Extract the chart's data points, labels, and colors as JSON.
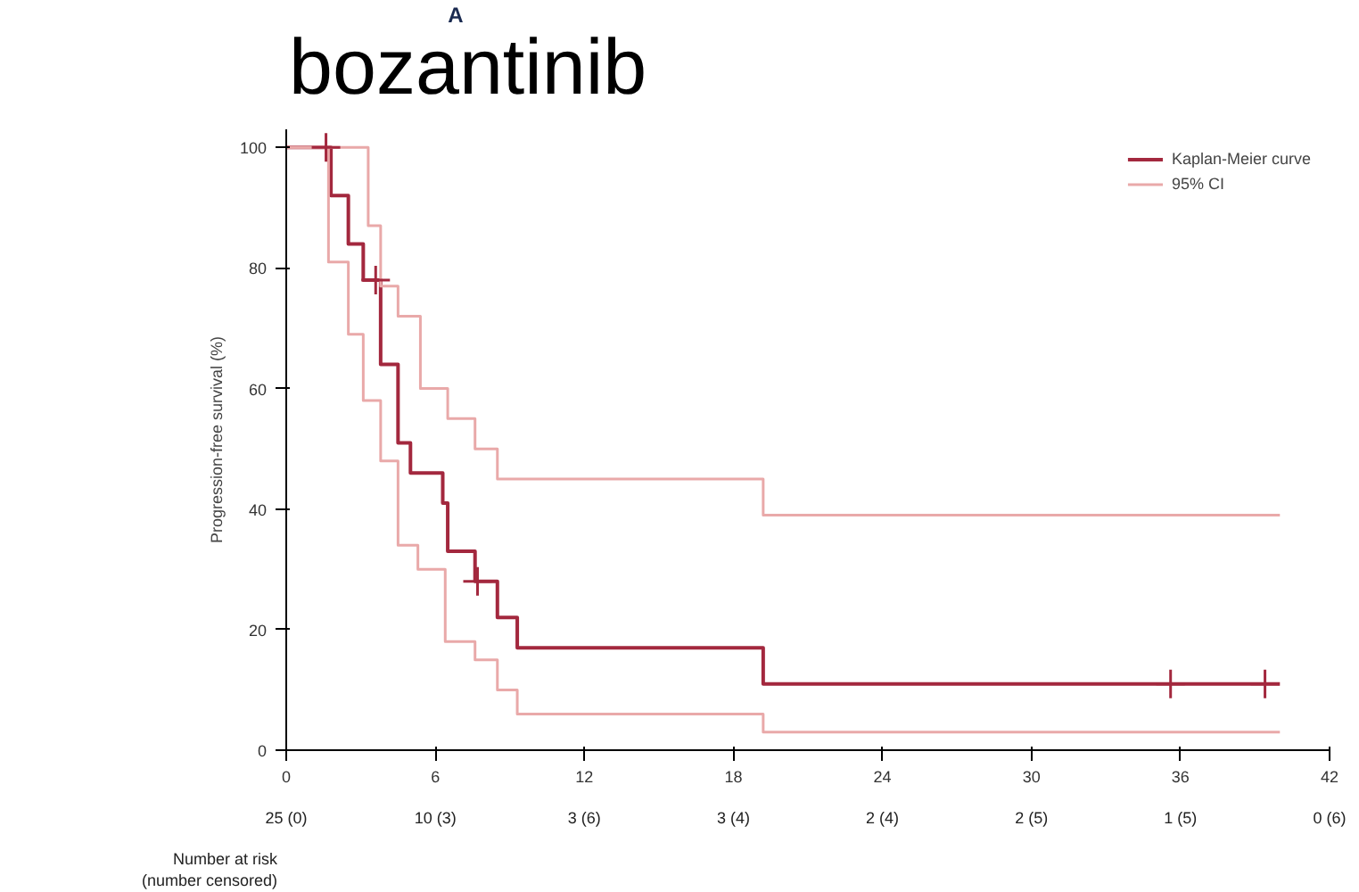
{
  "chart_data": {
    "type": "step",
    "title": "A",
    "subtitle": "bozantinib",
    "ylabel": "Progression-free survival (%)",
    "xlim": [
      0,
      42
    ],
    "ylim": [
      0,
      103
    ],
    "xticks": [
      0,
      6,
      12,
      18,
      24,
      30,
      36,
      42
    ],
    "yticks": [
      0,
      20,
      40,
      60,
      80,
      100
    ],
    "grid": false,
    "legend": "top right",
    "line_style": "solid",
    "series": [
      {
        "name": "Kaplan-Meier curve",
        "color": "#a3283e",
        "x": [
          0,
          1.8,
          2.5,
          3.1,
          3.8,
          4.5,
          5.0,
          6.3,
          6.5,
          7.6,
          8.5,
          9.3,
          19.2,
          40
        ],
        "values": [
          100,
          92,
          84,
          78,
          64,
          51,
          46,
          41,
          33,
          28,
          22,
          17,
          11,
          11
        ]
      },
      {
        "name": "95% CI",
        "color": "#e9a9a9",
        "x": [
          0,
          3.3,
          3.8,
          4.5,
          5.4,
          6.5,
          7.6,
          8.5,
          9.3,
          19.2,
          40
        ],
        "values": [
          100,
          87,
          77,
          72,
          60,
          55,
          50,
          45,
          45,
          39,
          39
        ]
      },
      {
        "color": "#e9a9a9",
        "x": [
          0,
          1.7,
          2.5,
          3.1,
          3.8,
          4.5,
          5.3,
          6.4,
          7.6,
          8.5,
          9.3,
          19.2,
          40
        ],
        "values": [
          100,
          81,
          69,
          58,
          48,
          34,
          30,
          18,
          15,
          10,
          6,
          3,
          3
        ]
      },
      {
        "type": "scatter",
        "marker": "cross",
        "color": "#a3283e",
        "x": [
          1.6,
          3.6,
          7.7,
          35.6,
          39.4
        ],
        "values": [
          100,
          78,
          28,
          11,
          11
        ]
      }
    ],
    "annotations": [
      "Number at risk\n(number censored)",
      "25 (0)",
      "10 (3)",
      "3 (6)",
      "3 (4)",
      "2 (4)",
      "2 (5)",
      "1 (5)",
      "0 (6)"
    ]
  }
}
